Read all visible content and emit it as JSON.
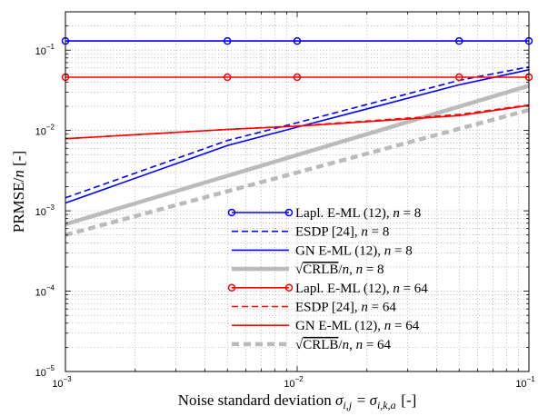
{
  "chart_data": {
    "type": "line",
    "title": "",
    "xlabel": "Noise standard deviation σ_{i,j} = σ_{i,k,a} [-]",
    "ylabel": "PRMSE/n [-]",
    "xscale": "log",
    "yscale": "log",
    "xlim": [
      0.001,
      0.1
    ],
    "ylim": [
      1e-05,
      0.3
    ],
    "x_ticks": [
      {
        "value": 0.001,
        "base": "10",
        "exp": "−3"
      },
      {
        "value": 0.01,
        "base": "10",
        "exp": "−2"
      },
      {
        "value": 0.1,
        "base": "10",
        "exp": "−1"
      }
    ],
    "y_ticks": [
      {
        "value": 1e-05,
        "base": "10",
        "exp": "−5"
      },
      {
        "value": 0.0001,
        "base": "10",
        "exp": "−4"
      },
      {
        "value": 0.001,
        "base": "10",
        "exp": "−3"
      },
      {
        "value": 0.01,
        "base": "10",
        "exp": "−2"
      },
      {
        "value": 0.1,
        "base": "10",
        "exp": "−1"
      }
    ],
    "grid": "major and minor, dotted",
    "legend_position": "lower-right",
    "series": [
      {
        "name": "Lapl. E-ML (12), n = 8",
        "color": "#0000ff",
        "style": "solid",
        "marker": "circle",
        "width": 1.6,
        "x": [
          0.001,
          0.005,
          0.01,
          0.05,
          0.1
        ],
        "y": [
          0.13,
          0.13,
          0.13,
          0.13,
          0.13
        ]
      },
      {
        "name": "ESDP [24], n = 8",
        "color": "#0000ff",
        "style": "dashed",
        "marker": "none",
        "width": 1.6,
        "x": [
          0.001,
          0.005,
          0.01,
          0.05,
          0.1
        ],
        "y": [
          0.00145,
          0.0075,
          0.0125,
          0.042,
          0.062
        ]
      },
      {
        "name": "GN E-ML (12), n = 8",
        "color": "#0000ff",
        "style": "solid",
        "marker": "none",
        "width": 1.6,
        "x": [
          0.001,
          0.005,
          0.01,
          0.05,
          0.1
        ],
        "y": [
          0.00125,
          0.0065,
          0.011,
          0.037,
          0.057
        ]
      },
      {
        "name": "√CRLB/n, n = 8",
        "color": "#bbbbbb",
        "style": "solid",
        "marker": "none",
        "width": 4.5,
        "x": [
          0.001,
          0.1
        ],
        "y": [
          0.00068,
          0.036
        ]
      },
      {
        "name": "Lapl. E-ML (12), n = 64",
        "color": "#ff0000",
        "style": "solid",
        "marker": "circle",
        "width": 1.6,
        "x": [
          0.001,
          0.005,
          0.01,
          0.05,
          0.1
        ],
        "y": [
          0.046,
          0.046,
          0.046,
          0.046,
          0.046
        ]
      },
      {
        "name": "ESDP [24], n = 64",
        "color": "#ff0000",
        "style": "dashed",
        "marker": "none",
        "width": 1.6,
        "x": [
          0.001,
          0.005,
          0.01,
          0.05,
          0.1
        ],
        "y": [
          0.0079,
          0.0103,
          0.0114,
          0.0158,
          0.0208
        ]
      },
      {
        "name": "GN E-ML (12), n = 64",
        "color": "#ff0000",
        "style": "solid",
        "marker": "none",
        "width": 1.6,
        "x": [
          0.001,
          0.005,
          0.01,
          0.05,
          0.1
        ],
        "y": [
          0.0079,
          0.0103,
          0.0113,
          0.0153,
          0.0205
        ]
      },
      {
        "name": "√CRLB/n, n = 64",
        "color": "#bbbbbb",
        "style": "dashed",
        "marker": "none",
        "width": 4.5,
        "x": [
          0.001,
          0.1
        ],
        "y": [
          0.0005,
          0.018
        ]
      }
    ],
    "legend": [
      {
        "pre": "Lapl. E-ML (12), ",
        "var": "n",
        "post": " = 8",
        "sqrt": false
      },
      {
        "pre": "ESDP [24], ",
        "var": "n",
        "post": " = 8",
        "sqrt": false
      },
      {
        "pre": "GN E-ML (12), ",
        "var": "n",
        "post": " = 8",
        "sqrt": false
      },
      {
        "pre": "CRLB",
        "var": "n",
        "post": " = 8",
        "sqrt": true
      },
      {
        "pre": "Lapl. E-ML (12), ",
        "var": "n",
        "post": " = 64",
        "sqrt": false
      },
      {
        "pre": "ESDP [24], ",
        "var": "n",
        "post": " = 64",
        "sqrt": false
      },
      {
        "pre": "GN E-ML (12), ",
        "var": "n",
        "post": " = 64",
        "sqrt": false
      },
      {
        "pre": "CRLB",
        "var": "n",
        "post": " = 64",
        "sqrt": true
      }
    ]
  }
}
